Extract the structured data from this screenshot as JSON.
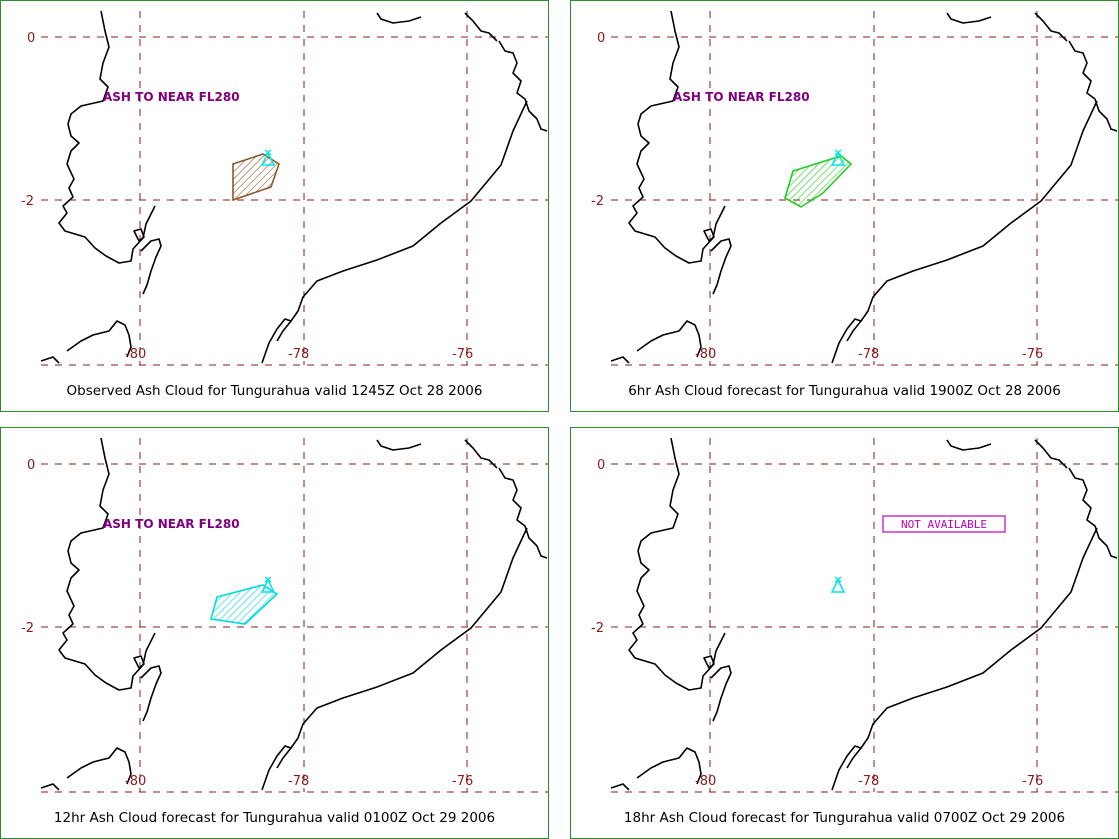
{
  "panels": [
    {
      "caption": "Observed Ash Cloud for Tungurahua valid 1245Z Oct 28 2006",
      "annotation": "ASH TO NEAR FL280",
      "cloud_color": "#8b5a2b",
      "volcano_color": "#00e5e5",
      "not_available": ""
    },
    {
      "caption": "6hr Ash Cloud forecast for Tungurahua valid 1900Z Oct 28 2006",
      "annotation": "ASH TO NEAR FL280",
      "cloud_color": "#22cc22",
      "volcano_color": "#00e5e5",
      "not_available": ""
    },
    {
      "caption": "12hr Ash Cloud forecast for Tungurahua valid 0100Z Oct 29 2006",
      "annotation": "ASH TO NEAR FL280",
      "cloud_color": "#00d8e0",
      "volcano_color": "#00e5e5",
      "not_available": ""
    },
    {
      "caption": "18hr Ash Cloud forecast for Tungurahua valid 0700Z Oct 29 2006",
      "annotation": "",
      "cloud_color": "",
      "volcano_color": "#00e5e5",
      "not_available": "NOT AVAILABLE"
    }
  ],
  "axes": {
    "lat_labels": [
      "0",
      "-2"
    ],
    "lon_labels": [
      "-80",
      "-78",
      "-76"
    ]
  },
  "colors": {
    "grid": "#8b1a1a",
    "coastline": "#000000",
    "panel_border": "#2e8b2e",
    "annotation": "#800080",
    "not_available": "#c000c0"
  }
}
